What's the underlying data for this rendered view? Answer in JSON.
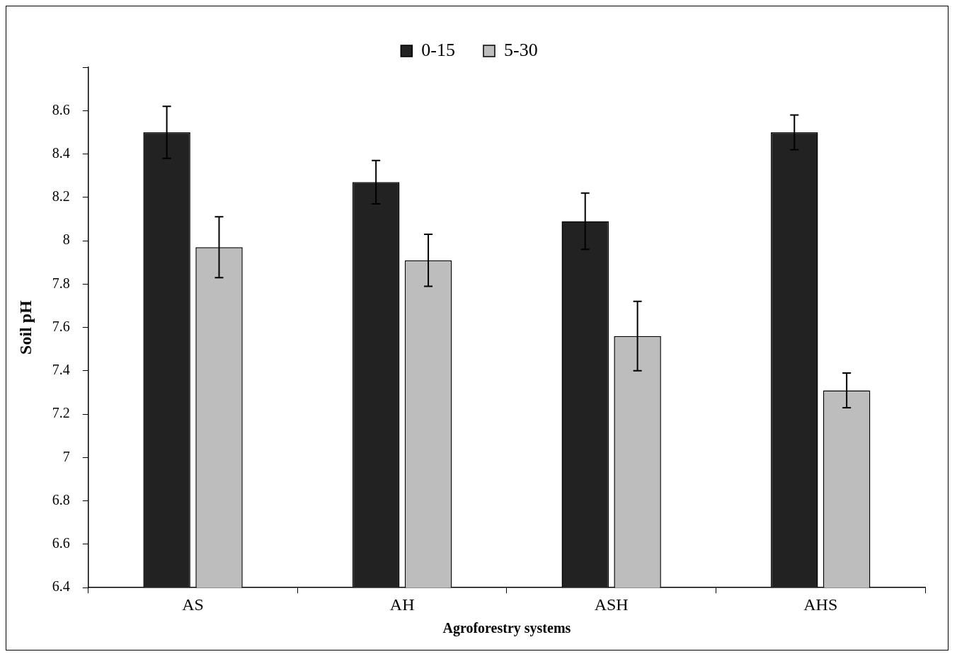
{
  "chart_data": {
    "type": "bar",
    "xlabel": "Agroforestry systems",
    "ylabel": "Soil pH",
    "categories": [
      "AS",
      "AH",
      "ASH",
      "AHS"
    ],
    "series": [
      {
        "name": "0-15",
        "color": "#222222",
        "values": [
          8.5,
          8.27,
          8.09,
          8.5
        ],
        "errors": [
          0.12,
          0.1,
          0.13,
          0.08
        ]
      },
      {
        "name": "5-30",
        "color": "#bdbdbd",
        "values": [
          7.97,
          7.91,
          7.56,
          7.31
        ],
        "errors": [
          0.14,
          0.12,
          0.16,
          0.08
        ]
      }
    ],
    "ylim": [
      6.4,
      8.8
    ],
    "yticks": [
      6.4,
      6.6,
      6.8,
      7,
      7.2,
      7.4,
      7.6,
      7.8,
      8,
      8.2,
      8.4,
      8.6,
      {
        "value": 8.8,
        "label": null
      }
    ],
    "grid": false,
    "legend": "top"
  }
}
